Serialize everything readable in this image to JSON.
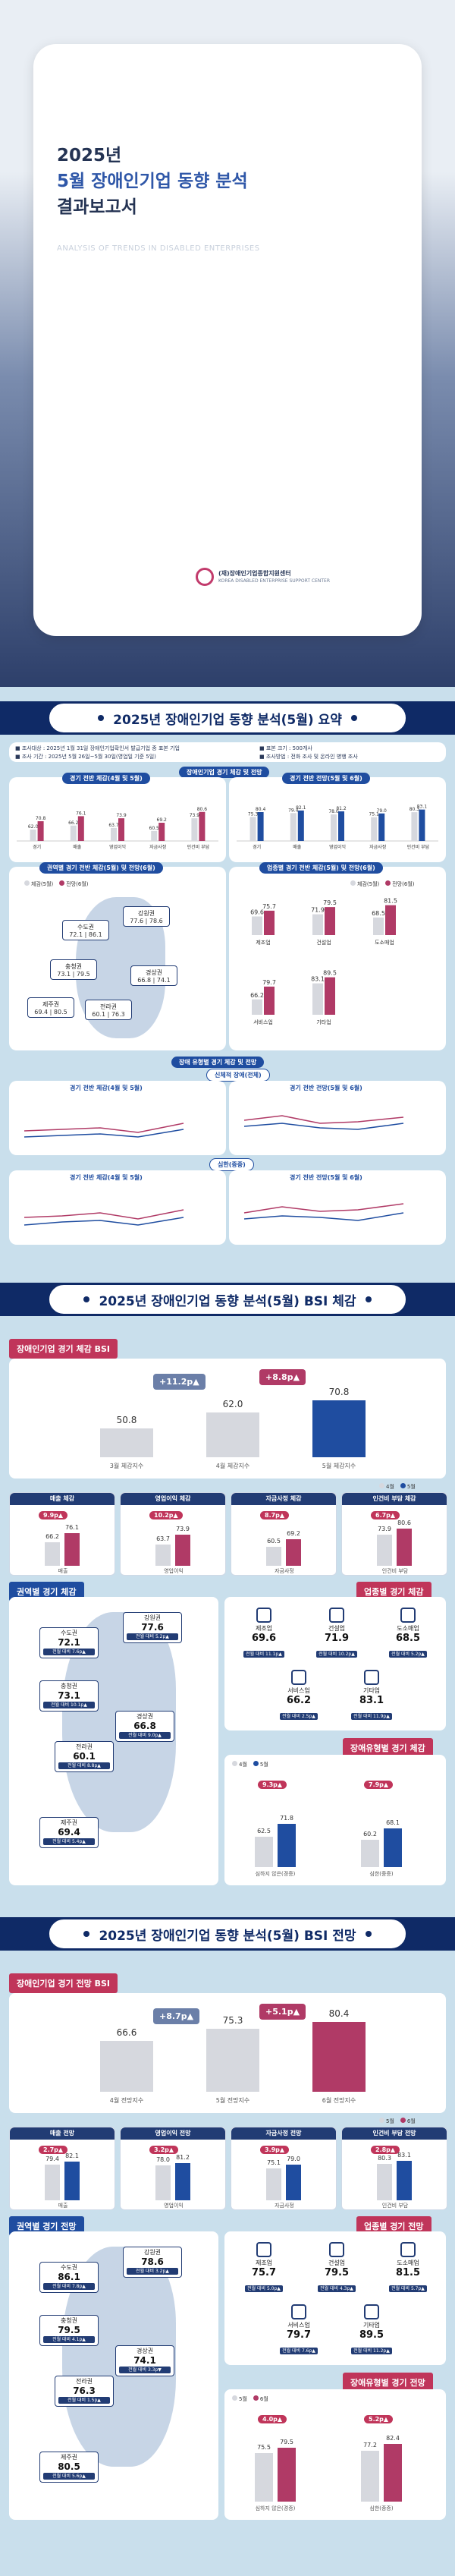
{
  "cover": {
    "year": "2025년",
    "title_line1": "5월 장애인기업 동향 분석",
    "title_line2": "결과보고서",
    "subtitle": "ANALYSIS OF TRENDS IN DISABLED ENTERPRISES",
    "org_name": "(재)장애인기업종합지원센터",
    "org_name_en": "KOREA DISABLED ENTERPRISE SUPPORT CENTER"
  },
  "summary": {
    "header": "2025년 장애인기업 동향 분석(5월) 요약",
    "info_lines": [
      "■ 조사대상 : 2025년 1월 31일 장애인기업확인서 발급기업 중 표본 기업",
      "■ 표본 크기 : 500개사",
      "■ 조사 기간 : 2025년 5월 26일~5월 30일(영업일 기준 5일)",
      "■ 조사방법 : 전화 조사 및 온라인 병행 조사"
    ],
    "tag_overall": "장애인기업 경기 체감 및 전망",
    "tag_current": "경기 전반 체감(4월 및 5월)",
    "tag_outlook": "경기 전반 전망(5월 및 6월)",
    "tag_region": "권역별 경기 전반 체감(5월) 및 전망(6월)",
    "tag_industry": "업종별 경기 전반 체감(5월) 및 전망(6월)",
    "tag_type": "장애 유형별 경기 체감 및 전망",
    "tag_physical": "신체적 장애(전체)",
    "tag_severe": "심한(중증)",
    "tag_type_current": "경기 전반 체감(4월 및 5월)",
    "tag_type_outlook": "경기 전반 전망(5월 및 6월)",
    "tag_severe_current": "경기 전반 체감(4월 및 5월)",
    "tag_severe_outlook": "경기 전반 전망(5월 및 6월)",
    "current_categories": [
      "경기",
      "매출",
      "영업이익",
      "자금사정",
      "인건비 부담"
    ],
    "current_values": [
      {
        "a": 62.0,
        "b": 70.8
      },
      {
        "a": 66.2,
        "b": 76.1
      },
      {
        "a": 63.7,
        "b": 73.9
      },
      {
        "a": 60.5,
        "b": 69.2
      },
      {
        "a": 73.9,
        "b": 80.6
      }
    ],
    "outlook_values": [
      {
        "a": 75.3,
        "b": 80.4
      },
      {
        "a": 79.4,
        "b": 82.1
      },
      {
        "a": 78.0,
        "b": 81.2
      },
      {
        "a": 75.1,
        "b": 79.0
      },
      {
        "a": 80.3,
        "b": 83.1
      }
    ],
    "region_legend_a": "체감(5월)",
    "region_legend_b": "전망(6월)",
    "regions_summary": [
      {
        "name": "수도권",
        "a": "72.1",
        "b": "86.1"
      },
      {
        "name": "강원권",
        "a": "77.6",
        "b": "78.6"
      },
      {
        "name": "충청권",
        "a": "73.1",
        "b": "79.5"
      },
      {
        "name": "경상권",
        "a": "66.8",
        "b": "74.1"
      },
      {
        "name": "전라권",
        "a": "60.1",
        "b": "76.3"
      },
      {
        "name": "제주권",
        "a": "69.4",
        "b": "80.5"
      }
    ],
    "industry_summary": [
      {
        "name": "제조업",
        "a": 69.6,
        "b": 75.7
      },
      {
        "name": "건설업",
        "a": 71.9,
        "b": 79.5
      },
      {
        "name": "도소매업",
        "a": 68.5,
        "b": 81.5
      },
      {
        "name": "서비스업",
        "a": 66.2,
        "b": 79.7
      },
      {
        "name": "기타업",
        "a": 83.1,
        "b": 89.5
      }
    ]
  },
  "bsi_current": {
    "header": "2025년 장애인기업 동향 분석(5월) BSI 체감",
    "main_tag": "장애인기업 경기 체감 BSI",
    "main_bars": [
      {
        "label": "3월 체감지수",
        "value": "50.8"
      },
      {
        "label": "4월 체감지수",
        "value": "62.0"
      },
      {
        "label": "5월 체감지수",
        "value": "70.8"
      }
    ],
    "deltas": [
      "+11.2p▲",
      "+8.8p▲"
    ],
    "legend_a": "4월",
    "legend_b": "5월",
    "sub": [
      {
        "title": "매출 체감",
        "badge": "9.9p▲",
        "a": "66.2",
        "b": "76.1",
        "label": "매출"
      },
      {
        "title": "영업이익 체감",
        "badge": "10.2p▲",
        "a": "63.7",
        "b": "73.9",
        "label": "영업이익"
      },
      {
        "title": "자금사정 체감",
        "badge": "8.7p▲",
        "a": "60.5",
        "b": "69.2",
        "label": "자금사정"
      },
      {
        "title": "인건비 부담 체감",
        "badge": "6.7p▲",
        "a": "73.9",
        "b": "80.6",
        "label": "인건비 부담"
      }
    ],
    "region_tag": "권역별 경기 체감",
    "industry_tag": "업종별 경기 체감",
    "type_tag": "장애유형별 경기 체감",
    "regions": [
      {
        "name": "수도권",
        "value": "72.1",
        "chg": "전월 대비 7.6p▲"
      },
      {
        "name": "강원권",
        "value": "77.6",
        "chg": "전월 대비 5.2p▲"
      },
      {
        "name": "충청권",
        "value": "73.1",
        "chg": "전월 대비 10.1p▲"
      },
      {
        "name": "경상권",
        "value": "66.8",
        "chg": "전월 대비 9.0p▲"
      },
      {
        "name": "전라권",
        "value": "60.1",
        "chg": "전월 대비 8.8p▲"
      },
      {
        "name": "제주권",
        "value": "69.4",
        "chg": "전월 대비 5.4p▲"
      }
    ],
    "industries": [
      {
        "name": "제조업",
        "value": "69.6",
        "chg": "전월 대비 11.1p▲"
      },
      {
        "name": "건설업",
        "value": "71.9",
        "chg": "전월 대비 10.2p▲"
      },
      {
        "name": "도소매업",
        "value": "68.5",
        "chg": "전월 대비 5.2p▲"
      },
      {
        "name": "서비스업",
        "value": "66.2",
        "chg": "전월 대비 2.5p▲"
      },
      {
        "name": "기타업",
        "value": "83.1",
        "chg": "전월 대비 11.9p▲"
      }
    ],
    "types": [
      {
        "label": "심하지 않은(경증)",
        "badge": "9.3p▲",
        "a": "62.5",
        "b": "71.8"
      },
      {
        "label": "심한(중증)",
        "badge": "7.9p▲",
        "a": "60.2",
        "b": "68.1"
      }
    ]
  },
  "bsi_outlook": {
    "header": "2025년 장애인기업 동향 분석(5월) BSI 전망",
    "main_tag": "장애인기업 경기 전망 BSI",
    "main_bars": [
      {
        "label": "4월 전망지수",
        "value": "66.6"
      },
      {
        "label": "5월 전망지수",
        "value": "75.3"
      },
      {
        "label": "6월 전망지수",
        "value": "80.4"
      }
    ],
    "deltas": [
      "+8.7p▲",
      "+5.1p▲"
    ],
    "legend_a": "5월",
    "legend_b": "6월",
    "sub": [
      {
        "title": "매출 전망",
        "badge": "2.7p▲",
        "a": "79.4",
        "b": "82.1",
        "label": "매출"
      },
      {
        "title": "영업이익 전망",
        "badge": "3.2p▲",
        "a": "78.0",
        "b": "81.2",
        "label": "영업이익"
      },
      {
        "title": "자금사정 전망",
        "badge": "3.9p▲",
        "a": "75.1",
        "b": "79.0",
        "label": "자금사정"
      },
      {
        "title": "인건비 부담 전망",
        "badge": "2.8p▲",
        "a": "80.3",
        "b": "83.1",
        "label": "인건비 부담"
      }
    ],
    "region_tag": "권역별 경기 전망",
    "industry_tag": "업종별 경기 전망",
    "type_tag": "장애유형별 경기 전망",
    "regions": [
      {
        "name": "수도권",
        "value": "86.1",
        "chg": "전월 대비 7.8p▲"
      },
      {
        "name": "강원권",
        "value": "78.6",
        "chg": "전월 대비 3.2p▲"
      },
      {
        "name": "충청권",
        "value": "79.5",
        "chg": "전월 대비 4.1p▲"
      },
      {
        "name": "경상권",
        "value": "74.1",
        "chg": "전월 대비 3.3p▼"
      },
      {
        "name": "전라권",
        "value": "76.3",
        "chg": "전월 대비 1.5p▲"
      },
      {
        "name": "제주권",
        "value": "80.5",
        "chg": "전월 대비 5.6p▲"
      }
    ],
    "industries": [
      {
        "name": "제조업",
        "value": "75.7",
        "chg": "전월 대비 5.0p▲"
      },
      {
        "name": "건설업",
        "value": "79.5",
        "chg": "전월 대비 4.3p▲"
      },
      {
        "name": "도소매업",
        "value": "81.5",
        "chg": "전월 대비 5.7p▲"
      },
      {
        "name": "서비스업",
        "value": "79.7",
        "chg": "전월 대비 7.6p▲"
      },
      {
        "name": "기타업",
        "value": "89.5",
        "chg": "전월 대비 11.2p▲"
      }
    ],
    "types": [
      {
        "label": "심하지 않은(경증)",
        "badge": "4.0p▲",
        "a": "75.5",
        "b": "79.5"
      },
      {
        "label": "심한(중증)",
        "badge": "5.2p▲",
        "a": "77.2",
        "b": "82.4"
      }
    ]
  },
  "colors": {
    "navy": "#0f2a66",
    "blue": "#1f4da0",
    "pink": "#b03a66",
    "red": "#c0355a",
    "grey": "#d6d8de"
  }
}
